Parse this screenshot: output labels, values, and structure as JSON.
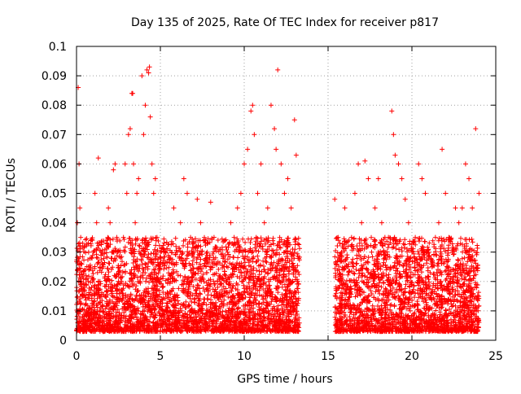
{
  "chart_data": {
    "type": "scatter",
    "title": "Day 135 of 2025, Rate Of TEC Index for receiver p817",
    "xlabel": "GPS time / hours",
    "ylabel": "ROTI / TECUs",
    "xlim": [
      0,
      25
    ],
    "ylim": [
      0,
      0.1
    ],
    "x_ticks": [
      0,
      5,
      10,
      15,
      20,
      25
    ],
    "y_ticks": [
      0,
      0.01,
      0.02,
      0.03,
      0.04,
      0.05,
      0.06,
      0.07,
      0.08,
      0.09,
      0.1
    ],
    "grid": true,
    "marker": "plus",
    "series": [
      {
        "color": "#ff0000",
        "x": [
          0.05,
          0.1,
          0.15,
          0.2,
          0.25,
          0.3,
          0.4,
          0.5,
          0.6,
          0.7,
          0.8,
          0.9,
          1.0,
          1.1,
          1.2,
          1.3,
          1.4,
          1.5,
          1.6,
          1.7,
          1.8,
          1.9,
          2.0,
          2.1,
          2.2,
          2.3,
          2.4,
          2.5,
          2.6,
          2.7,
          2.8,
          2.9,
          3.0,
          3.1,
          3.2,
          3.3,
          3.35,
          3.4,
          3.5,
          3.6,
          3.7,
          3.8,
          3.9,
          4.0,
          4.1,
          4.2,
          4.3,
          4.35,
          4.4,
          4.5,
          4.6,
          4.7,
          4.8,
          4.9,
          5.0,
          5.2,
          5.4,
          5.6,
          5.8,
          6.0,
          6.2,
          6.4,
          6.6,
          6.8,
          7.0,
          7.2,
          7.4,
          7.6,
          7.8,
          8.0,
          8.2,
          8.4,
          8.6,
          8.8,
          9.0,
          9.2,
          9.4,
          9.6,
          9.8,
          10.0,
          10.2,
          10.4,
          10.5,
          10.6,
          10.8,
          11.0,
          11.2,
          11.4,
          11.6,
          11.8,
          11.9,
          12.0,
          12.2,
          12.4,
          12.6,
          12.8,
          13.0,
          13.1,
          13.2,
          15.4,
          15.6,
          15.8,
          16.0,
          16.2,
          16.4,
          16.6,
          16.8,
          17.0,
          17.2,
          17.4,
          17.6,
          17.8,
          18.0,
          18.2,
          18.4,
          18.6,
          18.8,
          18.9,
          19.0,
          19.2,
          19.4,
          19.6,
          19.8,
          20.0,
          20.2,
          20.4,
          20.6,
          20.8,
          21.0,
          21.2,
          21.4,
          21.6,
          21.8,
          22.0,
          22.2,
          22.4,
          22.6,
          22.8,
          23.0,
          23.2,
          23.4,
          23.6,
          23.8,
          24.0
        ],
        "y": [
          0.04,
          0.086,
          0.06,
          0.045,
          0.035,
          0.02,
          0.015,
          0.012,
          0.01,
          0.02,
          0.008,
          0.018,
          0.03,
          0.05,
          0.04,
          0.062,
          0.02,
          0.03,
          0.025,
          0.015,
          0.02,
          0.045,
          0.04,
          0.03,
          0.058,
          0.06,
          0.035,
          0.02,
          0.03,
          0.02,
          0.035,
          0.06,
          0.05,
          0.07,
          0.072,
          0.084,
          0.084,
          0.06,
          0.04,
          0.05,
          0.055,
          0.02,
          0.09,
          0.07,
          0.08,
          0.092,
          0.091,
          0.093,
          0.076,
          0.06,
          0.05,
          0.055,
          0.035,
          0.02,
          0.025,
          0.03,
          0.015,
          0.02,
          0.045,
          0.03,
          0.04,
          0.055,
          0.05,
          0.035,
          0.03,
          0.048,
          0.04,
          0.02,
          0.03,
          0.047,
          0.035,
          0.02,
          0.015,
          0.025,
          0.03,
          0.04,
          0.035,
          0.045,
          0.05,
          0.06,
          0.065,
          0.078,
          0.08,
          0.07,
          0.05,
          0.06,
          0.04,
          0.045,
          0.08,
          0.072,
          0.065,
          0.092,
          0.06,
          0.05,
          0.055,
          0.045,
          0.075,
          0.063,
          0.02,
          0.048,
          0.035,
          0.03,
          0.045,
          0.032,
          0.035,
          0.05,
          0.06,
          0.04,
          0.061,
          0.055,
          0.03,
          0.045,
          0.055,
          0.04,
          0.03,
          0.035,
          0.078,
          0.07,
          0.063,
          0.06,
          0.055,
          0.048,
          0.04,
          0.03,
          0.035,
          0.06,
          0.055,
          0.05,
          0.03,
          0.025,
          0.035,
          0.04,
          0.065,
          0.05,
          0.035,
          0.03,
          0.045,
          0.04,
          0.045,
          0.06,
          0.055,
          0.045,
          0.072,
          0.05
        ]
      }
    ],
    "dense_band": {
      "y_range": [
        0.003,
        0.035
      ],
      "intervals": [
        [
          0,
          13.3
        ],
        [
          15.4,
          24.0
        ]
      ]
    }
  }
}
